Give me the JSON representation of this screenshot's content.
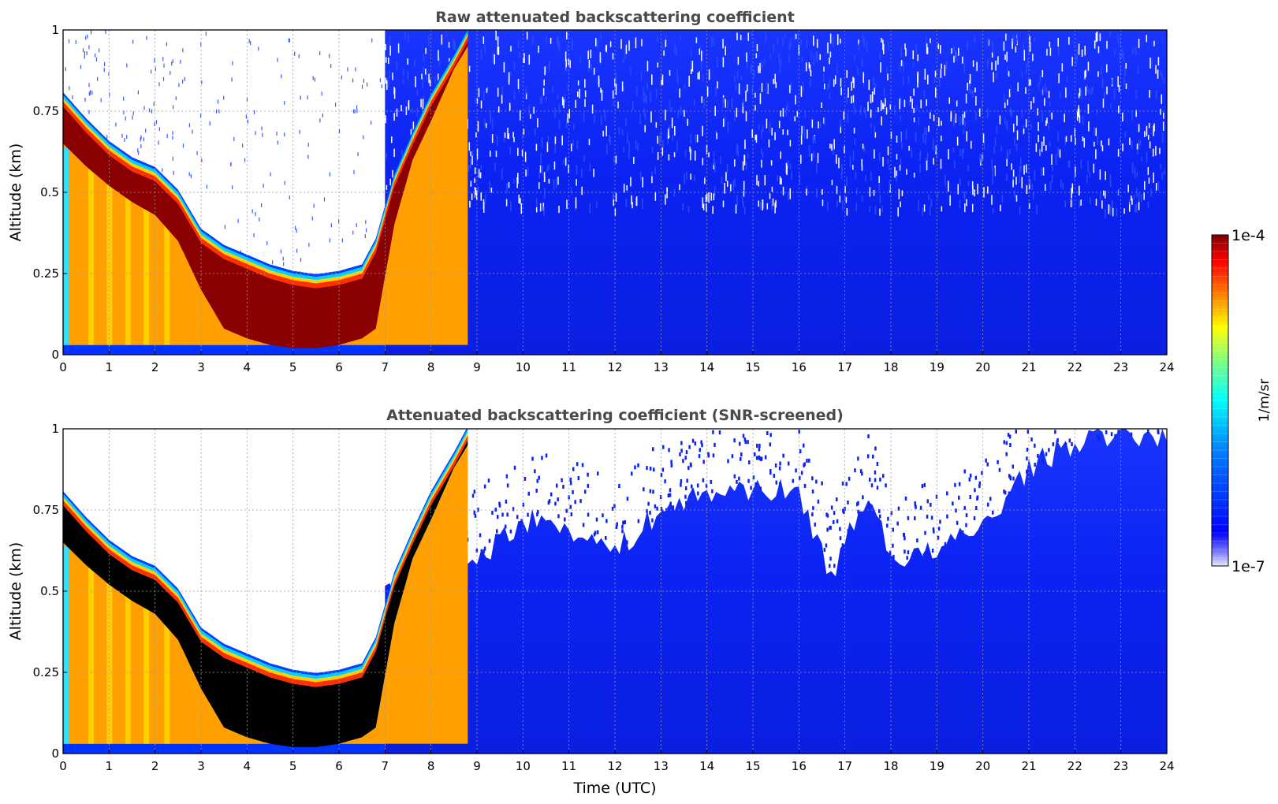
{
  "colorbar": {
    "label": "1/m/sr",
    "min_label": "1e-7",
    "max_label": "1e-4",
    "colormap": "jet",
    "scale": "log"
  },
  "xaxis_label": "Time (UTC)",
  "chart_data": [
    {
      "type": "heatmap",
      "title": "Raw attenuated backscattering coefficient",
      "xlabel": "",
      "ylabel": "Altitude (km)",
      "xlim": [
        0,
        24
      ],
      "ylim": [
        0,
        1
      ],
      "xticks": [
        "0",
        "1",
        "2",
        "3",
        "4",
        "5",
        "6",
        "7",
        "8",
        "9",
        "10",
        "11",
        "12",
        "13",
        "14",
        "15",
        "16",
        "17",
        "18",
        "19",
        "20",
        "21",
        "22",
        "23",
        "24"
      ],
      "yticks": [
        "0",
        "0.25",
        "0.5",
        "0.75",
        "1"
      ],
      "grid": true,
      "colorscale_range": [
        1e-07,
        0.0001
      ],
      "cloud_layer_top_km": [
        {
          "x": 0,
          "y": 0.8
        },
        {
          "x": 0.5,
          "y": 0.72
        },
        {
          "x": 1,
          "y": 0.65
        },
        {
          "x": 1.5,
          "y": 0.6
        },
        {
          "x": 2,
          "y": 0.57
        },
        {
          "x": 2.5,
          "y": 0.5
        },
        {
          "x": 3,
          "y": 0.38
        },
        {
          "x": 3.5,
          "y": 0.33
        },
        {
          "x": 4,
          "y": 0.3
        },
        {
          "x": 4.5,
          "y": 0.27
        },
        {
          "x": 5,
          "y": 0.25
        },
        {
          "x": 5.5,
          "y": 0.24
        },
        {
          "x": 6,
          "y": 0.25
        },
        {
          "x": 6.5,
          "y": 0.27
        },
        {
          "x": 6.8,
          "y": 0.35
        },
        {
          "x": 7.2,
          "y": 0.55
        },
        {
          "x": 7.6,
          "y": 0.68
        },
        {
          "x": 8,
          "y": 0.8
        },
        {
          "x": 8.5,
          "y": 0.92
        },
        {
          "x": 8.8,
          "y": 1.0
        }
      ],
      "cloud_layer_base_km": [
        {
          "x": 0,
          "y": 0.65
        },
        {
          "x": 0.5,
          "y": 0.58
        },
        {
          "x": 1,
          "y": 0.52
        },
        {
          "x": 1.5,
          "y": 0.47
        },
        {
          "x": 2,
          "y": 0.43
        },
        {
          "x": 2.5,
          "y": 0.35
        },
        {
          "x": 3,
          "y": 0.2
        },
        {
          "x": 3.5,
          "y": 0.08
        },
        {
          "x": 4,
          "y": 0.05
        },
        {
          "x": 4.5,
          "y": 0.03
        },
        {
          "x": 5,
          "y": 0.02
        },
        {
          "x": 5.5,
          "y": 0.02
        },
        {
          "x": 6,
          "y": 0.03
        },
        {
          "x": 6.5,
          "y": 0.05
        },
        {
          "x": 6.8,
          "y": 0.08
        },
        {
          "x": 7.2,
          "y": 0.4
        },
        {
          "x": 7.6,
          "y": 0.6
        },
        {
          "x": 8,
          "y": 0.72
        },
        {
          "x": 8.5,
          "y": 0.88
        },
        {
          "x": 8.8,
          "y": 0.95
        }
      ],
      "aerosol_background": {
        "x_start": 7,
        "x_end": 24,
        "level_log10": -6.6
      }
    },
    {
      "type": "heatmap",
      "title": "Attenuated backscattering coefficient (SNR-screened)",
      "xlabel": "Time (UTC)",
      "ylabel": "Altitude (km)",
      "xlim": [
        0,
        24
      ],
      "ylim": [
        0,
        1
      ],
      "xticks": [
        "0",
        "1",
        "2",
        "3",
        "4",
        "5",
        "6",
        "7",
        "8",
        "9",
        "10",
        "11",
        "12",
        "13",
        "14",
        "15",
        "16",
        "17",
        "18",
        "19",
        "20",
        "21",
        "22",
        "23",
        "24"
      ],
      "yticks": [
        "0",
        "0.25",
        "0.5",
        "0.75",
        "1"
      ],
      "grid": true,
      "colorscale_range": [
        1e-07,
        0.0001
      ],
      "screened_top_km": [
        {
          "x": 7,
          "y": 0.5
        },
        {
          "x": 8,
          "y": 0.58
        },
        {
          "x": 9,
          "y": 0.6
        },
        {
          "x": 10,
          "y": 0.72
        },
        {
          "x": 11,
          "y": 0.7
        },
        {
          "x": 12,
          "y": 0.62
        },
        {
          "x": 13,
          "y": 0.75
        },
        {
          "x": 14,
          "y": 0.8
        },
        {
          "x": 15,
          "y": 0.82
        },
        {
          "x": 16,
          "y": 0.8
        },
        {
          "x": 16.7,
          "y": 0.55
        },
        {
          "x": 17,
          "y": 0.65
        },
        {
          "x": 17.6,
          "y": 0.8
        },
        {
          "x": 18,
          "y": 0.6
        },
        {
          "x": 19,
          "y": 0.62
        },
        {
          "x": 20,
          "y": 0.7
        },
        {
          "x": 21,
          "y": 0.88
        },
        {
          "x": 22,
          "y": 0.96
        },
        {
          "x": 23,
          "y": 0.98
        },
        {
          "x": 24,
          "y": 0.98
        }
      ],
      "saturated_core_color": "#000000"
    }
  ]
}
